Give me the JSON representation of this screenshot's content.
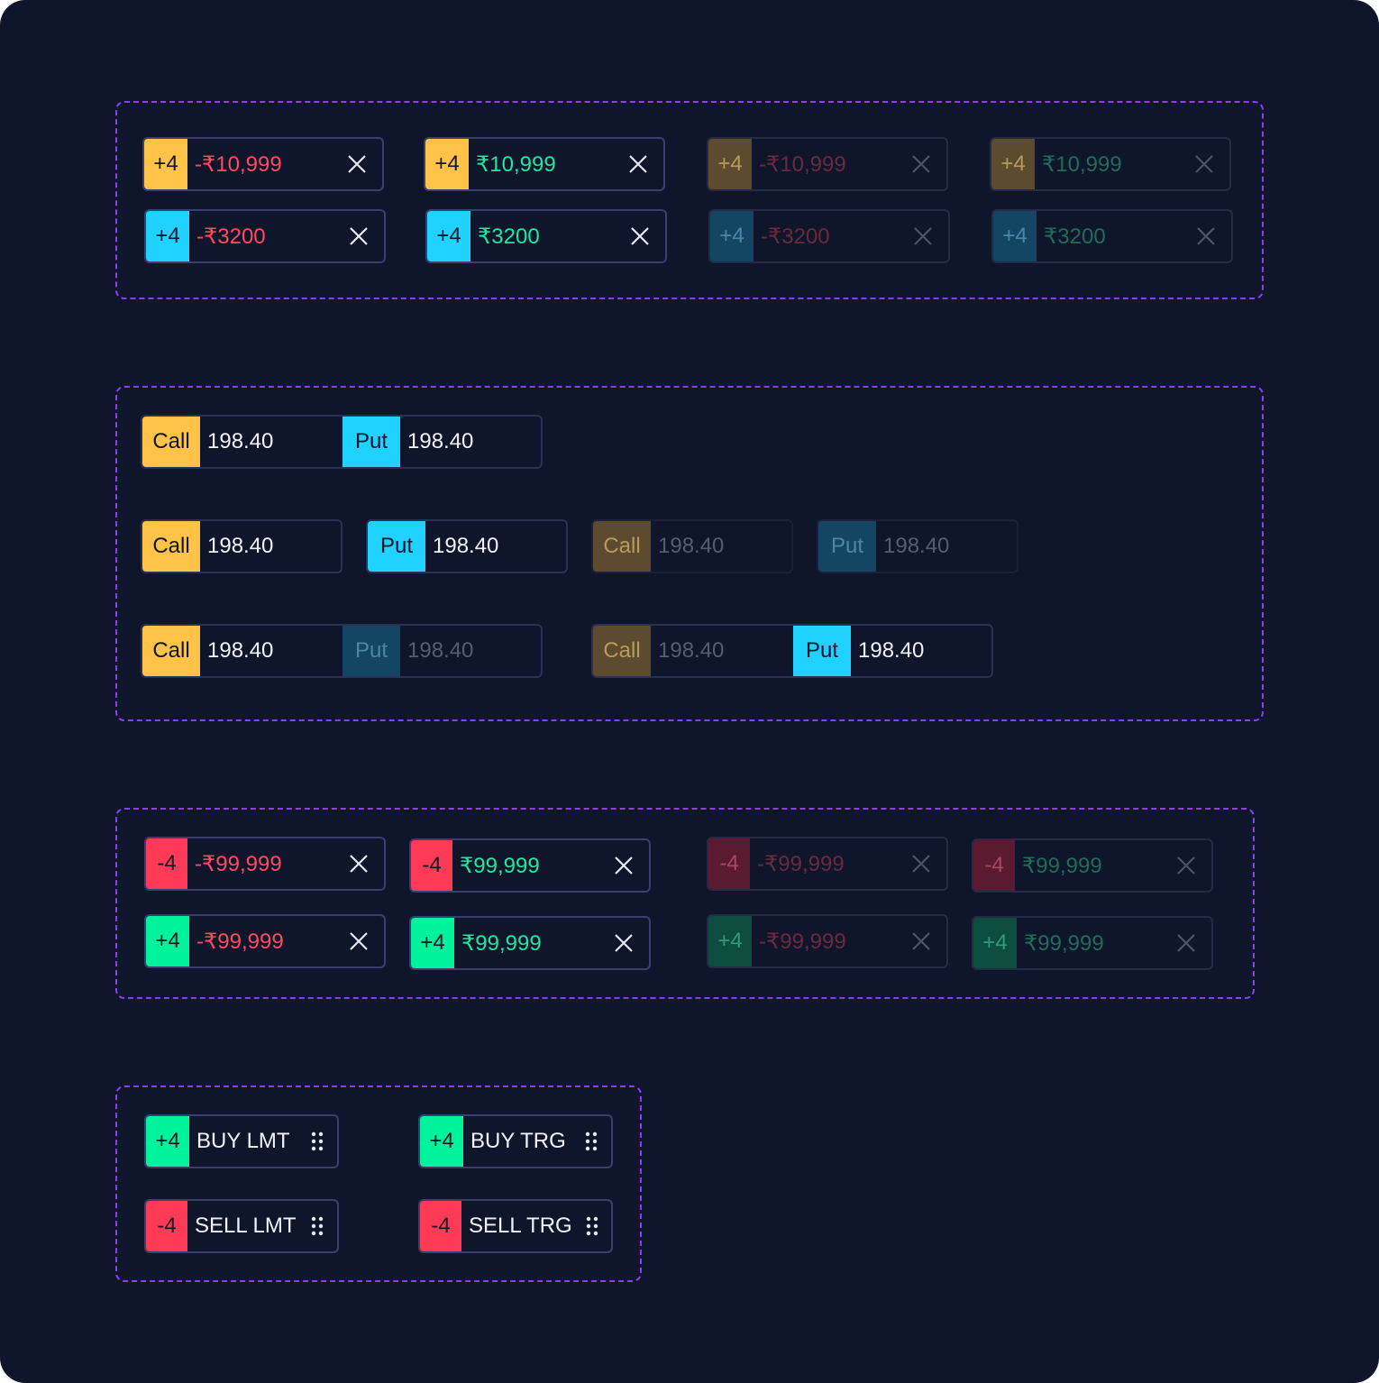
{
  "colors": {
    "accent_border": "#8b3ff0",
    "call": "#ffc447",
    "put": "#1fd2ff",
    "sell": "#ff3a56",
    "buy": "#00f39a",
    "background": "#0f152a"
  },
  "icons": {
    "close": "close-icon",
    "drag": "drag-handle-icon"
  },
  "pnl_chips": [
    {
      "badge": "+4",
      "value": "-₹10,999"
    },
    {
      "badge": "+4",
      "value": "₹10,999"
    },
    {
      "badge": "+4",
      "value": "-₹10,999"
    },
    {
      "badge": "+4",
      "value": "₹10,999"
    },
    {
      "badge": "+4",
      "value": "-₹3200"
    },
    {
      "badge": "+4",
      "value": "₹3200"
    },
    {
      "badge": "+4",
      "value": "-₹3200"
    },
    {
      "badge": "+4",
      "value": "₹3200"
    }
  ],
  "option_chips": {
    "call_label": "Call",
    "put_label": "Put",
    "price": "198.40"
  },
  "qty_chips": [
    {
      "badge": "-4",
      "value": "-₹99,999"
    },
    {
      "badge": "-4",
      "value": "₹99,999"
    },
    {
      "badge": "-4",
      "value": "-₹99,999"
    },
    {
      "badge": "-4",
      "value": "₹99,999"
    },
    {
      "badge": "+4",
      "value": "-₹99,999"
    },
    {
      "badge": "+4",
      "value": "₹99,999"
    },
    {
      "badge": "+4",
      "value": "-₹99,999"
    },
    {
      "badge": "+4",
      "value": "₹99,999"
    }
  ],
  "order_chips": [
    {
      "badge": "+4",
      "label": "BUY LMT"
    },
    {
      "badge": "+4",
      "label": "BUY TRG"
    },
    {
      "badge": "-4",
      "label": "SELL LMT"
    },
    {
      "badge": "-4",
      "label": "SELL TRG"
    }
  ]
}
